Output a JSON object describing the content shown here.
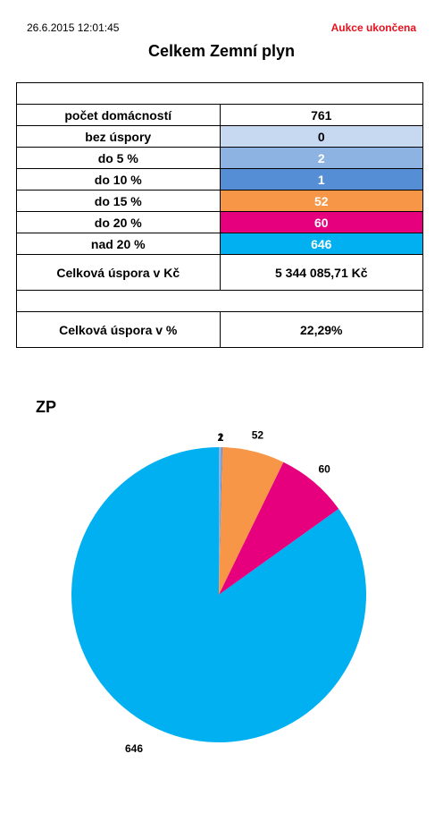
{
  "header": {
    "timestamp": "26.6.2015 12:01:45",
    "status": "Aukce ukončena",
    "status_color": "#e8101d",
    "title": "Celkem Zemní plyn"
  },
  "summary": {
    "rows": [
      {
        "label": "počet domácností",
        "value": "761",
        "bg": "#ffffff",
        "fg": "#000000"
      },
      {
        "label": "bez úspory",
        "value": "0",
        "bg": "#c6d9f1",
        "fg": "#000000"
      },
      {
        "label": "do 5 %",
        "value": "2",
        "bg": "#8db3e2",
        "fg": "#ffffff"
      },
      {
        "label": "do 10 %",
        "value": "1",
        "bg": "#558ed5",
        "fg": "#ffffff"
      },
      {
        "label": "do 15 %",
        "value": "52",
        "bg": "#f79646",
        "fg": "#ffffff"
      },
      {
        "label": "do 20 %",
        "value": "60",
        "bg": "#e6007e",
        "fg": "#ffffff"
      },
      {
        "label": "nad 20 %",
        "value": "646",
        "bg": "#00b0f0",
        "fg": "#ffffff"
      }
    ],
    "total_savings_czk_label": "Celková úspora v Kč",
    "total_savings_czk_value": "5 344 085,71 Kč",
    "total_savings_pct_label": "Celková úspora v %",
    "total_savings_pct_value": "22,29%"
  },
  "chart_data": {
    "type": "pie",
    "title": "ZP",
    "categories": [
      "bez úspory",
      "do 5 %",
      "do 10 %",
      "do 15 %",
      "do 20 %",
      "nad 20 %"
    ],
    "values": [
      0,
      2,
      1,
      52,
      60,
      646
    ],
    "data_labels": [
      "",
      "2",
      "1",
      "52",
      "60",
      "646"
    ],
    "colors": [
      "#c6d9f1",
      "#8db3e2",
      "#558ed5",
      "#f79646",
      "#e6007e",
      "#00b0f0"
    ],
    "start": "top",
    "direction": "clockwise",
    "legend": "none"
  }
}
